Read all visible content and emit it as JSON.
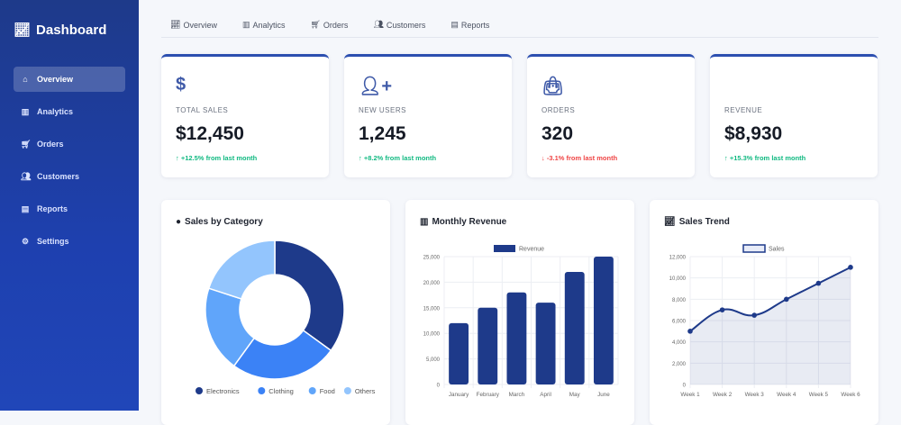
{
  "sidebar": {
    "brand": "Dashboard",
    "items": [
      {
        "label": "Overview",
        "icon": "home-icon",
        "active": true
      },
      {
        "label": "Analytics",
        "icon": "bar-chart-icon"
      },
      {
        "label": "Orders",
        "icon": "cart-icon"
      },
      {
        "label": "Customers",
        "icon": "users-icon"
      },
      {
        "label": "Reports",
        "icon": "file-icon"
      },
      {
        "label": "Settings",
        "icon": "gear-icon"
      }
    ]
  },
  "tabs": [
    {
      "label": "Overview",
      "icon": "line-chart-icon"
    },
    {
      "label": "Analytics",
      "icon": "bar-chart-icon"
    },
    {
      "label": "Orders",
      "icon": "cart-icon"
    },
    {
      "label": "Customers",
      "icon": "users-icon"
    },
    {
      "label": "Reports",
      "icon": "file-icon"
    }
  ],
  "stats": [
    {
      "label": "TOTAL SALES",
      "value": "$12,450",
      "change": "↑ +12.5% from last month",
      "trend": "up",
      "icon": "dollar-icon"
    },
    {
      "label": "NEW USERS",
      "value": "1,245",
      "change": "↑ +8.2% from last month",
      "trend": "up",
      "icon": "user-plus-icon"
    },
    {
      "label": "ORDERS",
      "value": "320",
      "change": "↓ -3.1% from last month",
      "trend": "down",
      "icon": "shopping-bag-icon"
    },
    {
      "label": "REVENUE",
      "value": "$8,930",
      "change": "↑ +15.3% from last month",
      "trend": "up"
    }
  ],
  "colors": {
    "primary": "#1e3a8a",
    "up": "#10b981",
    "down": "#ef4444"
  },
  "chart_data": [
    {
      "type": "pie",
      "title": "Sales by Category",
      "categories": [
        "Electronics",
        "Clothing",
        "Food",
        "Others"
      ],
      "values": [
        35,
        25,
        20,
        20
      ],
      "colors": [
        "#1e3a8a",
        "#3b82f6",
        "#60a5fa",
        "#93c5fd"
      ],
      "legend": "bottom"
    },
    {
      "type": "bar",
      "title": "Monthly Revenue",
      "categories": [
        "January",
        "February",
        "March",
        "April",
        "May",
        "June"
      ],
      "series": [
        {
          "name": "Revenue",
          "values": [
            12000,
            15000,
            18000,
            16000,
            22000,
            25000
          ]
        }
      ],
      "ylim": [
        0,
        25000
      ],
      "yticks": [
        "0",
        "5,000",
        "10,000",
        "15,000",
        "20,000",
        "25,000"
      ],
      "grid": true,
      "legend": "top"
    },
    {
      "type": "area",
      "title": "Sales Trend",
      "categories": [
        "Week 1",
        "Week 2",
        "Week 3",
        "Week 4",
        "Week 5",
        "Week 6"
      ],
      "series": [
        {
          "name": "Sales",
          "values": [
            5000,
            7000,
            6500,
            8000,
            9500,
            11000
          ]
        }
      ],
      "ylim": [
        0,
        12000
      ],
      "yticks": [
        "0",
        "2,000",
        "4,000",
        "6,000",
        "8,000",
        "10,000",
        "12,000"
      ],
      "grid": true,
      "legend": "top"
    }
  ]
}
